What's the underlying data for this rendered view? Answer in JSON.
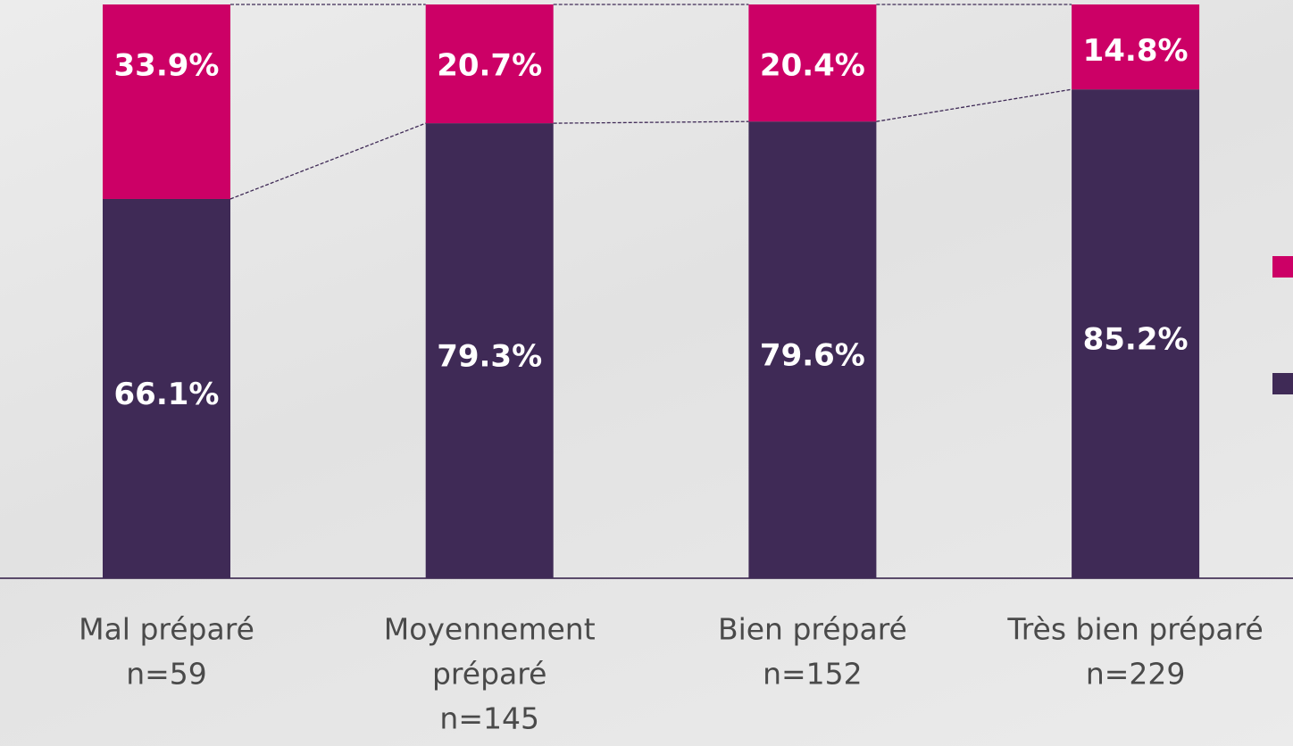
{
  "chart_data": {
    "type": "stacked-bar",
    "categories": [
      [
        "Mal préparé",
        "n=59"
      ],
      [
        "Moyennement",
        "préparé",
        "n=145"
      ],
      [
        "Bien préparé",
        "n=152"
      ],
      [
        "Très bien préparé",
        "n=229"
      ]
    ],
    "series": [
      {
        "color": "#3f2a56",
        "values": [
          66.1,
          79.3,
          79.6,
          85.2
        ],
        "value_labels": [
          "66.1%",
          "79.3%",
          "79.6%",
          "85.2%"
        ]
      },
      {
        "color": "#cc0066",
        "values": [
          33.9,
          20.7,
          20.4,
          14.8
        ],
        "value_labels": [
          "33.9%",
          "20.7%",
          "20.4%",
          "14.8%"
        ]
      }
    ],
    "ylim": [
      0,
      100
    ]
  }
}
